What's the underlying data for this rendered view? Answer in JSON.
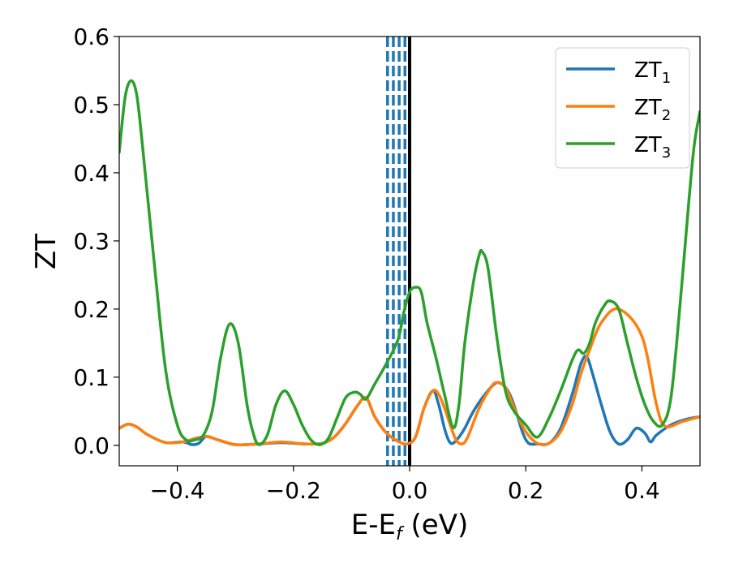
{
  "chart_data": {
    "type": "line",
    "xlabel": {
      "main": "E-E",
      "sub": "f",
      "suffix": " (eV)"
    },
    "ylabel": "ZT",
    "xlim": [
      -0.5,
      0.5
    ],
    "ylim": [
      -0.03,
      0.6
    ],
    "xticks": [
      -0.4,
      -0.2,
      0.0,
      0.2,
      0.4
    ],
    "xtick_labels": [
      "−0.4",
      "−0.2",
      "0.0",
      "0.2",
      "0.4"
    ],
    "yticks": [
      0.0,
      0.1,
      0.2,
      0.3,
      0.4,
      0.5,
      0.6
    ],
    "ytick_labels": [
      "0.0",
      "0.1",
      "0.2",
      "0.3",
      "0.4",
      "0.5",
      "0.6"
    ],
    "grid": false,
    "legend_placement": "top-right",
    "vertical_lines": [
      {
        "x": -0.038,
        "color": "#1f77b4",
        "style": "dashed"
      },
      {
        "x": -0.028,
        "color": "#1f77b4",
        "style": "dashed"
      },
      {
        "x": -0.018,
        "color": "#1f77b4",
        "style": "dashed"
      },
      {
        "x": -0.008,
        "color": "#1f77b4",
        "style": "dashed"
      },
      {
        "x": 0.0,
        "color": "#000000",
        "style": "solid"
      }
    ],
    "series": [
      {
        "name": "ZT",
        "sub": "1",
        "color": "#1f77b4",
        "x": [
          -0.5,
          -0.485,
          -0.47,
          -0.45,
          -0.42,
          -0.39,
          -0.375,
          -0.363,
          -0.35,
          -0.33,
          -0.3,
          -0.26,
          -0.22,
          -0.18,
          -0.15,
          -0.13,
          -0.11,
          -0.09,
          -0.075,
          -0.06,
          -0.04,
          -0.02,
          -0.005,
          0.01,
          0.025,
          0.04,
          0.05,
          0.06,
          0.068,
          0.075,
          0.085,
          0.095,
          0.11,
          0.13,
          0.15,
          0.165,
          0.175,
          0.185,
          0.195,
          0.205,
          0.22,
          0.24,
          0.26,
          0.28,
          0.295,
          0.305,
          0.315,
          0.33,
          0.345,
          0.36,
          0.375,
          0.39,
          0.405,
          0.415,
          0.425,
          0.45,
          0.475,
          0.5
        ],
        "y": [
          0.025,
          0.031,
          0.027,
          0.015,
          0.004,
          0.005,
          0.001,
          0.003,
          0.013,
          0.008,
          0.001,
          0.002,
          0.004,
          0.002,
          0.003,
          0.012,
          0.032,
          0.058,
          0.07,
          0.042,
          0.018,
          0.006,
          0.002,
          0.012,
          0.055,
          0.08,
          0.06,
          0.025,
          0.006,
          0.003,
          0.012,
          0.025,
          0.05,
          0.075,
          0.092,
          0.085,
          0.07,
          0.045,
          0.018,
          0.003,
          0.002,
          0.003,
          0.025,
          0.075,
          0.12,
          0.13,
          0.105,
          0.06,
          0.02,
          0.002,
          0.008,
          0.025,
          0.018,
          0.005,
          0.015,
          0.03,
          0.038,
          0.042
        ]
      },
      {
        "name": "ZT",
        "sub": "2",
        "color": "#ff7f0e",
        "x": [
          -0.5,
          -0.485,
          -0.47,
          -0.45,
          -0.42,
          -0.39,
          -0.37,
          -0.35,
          -0.33,
          -0.3,
          -0.26,
          -0.22,
          -0.18,
          -0.15,
          -0.13,
          -0.11,
          -0.09,
          -0.075,
          -0.06,
          -0.04,
          -0.02,
          -0.005,
          0.01,
          0.025,
          0.04,
          0.05,
          0.06,
          0.07,
          0.08,
          0.09,
          0.1,
          0.12,
          0.14,
          0.15,
          0.165,
          0.18,
          0.2,
          0.22,
          0.24,
          0.26,
          0.28,
          0.295,
          0.31,
          0.33,
          0.36,
          0.4,
          0.425,
          0.44,
          0.47,
          0.5
        ],
        "y": [
          0.025,
          0.031,
          0.027,
          0.015,
          0.004,
          0.005,
          0.01,
          0.013,
          0.008,
          0.001,
          0.002,
          0.005,
          0.002,
          0.003,
          0.012,
          0.032,
          0.058,
          0.07,
          0.042,
          0.018,
          0.006,
          0.002,
          0.012,
          0.055,
          0.08,
          0.075,
          0.055,
          0.03,
          0.008,
          0.002,
          0.012,
          0.055,
          0.085,
          0.092,
          0.085,
          0.055,
          0.02,
          0.003,
          0.003,
          0.02,
          0.06,
          0.105,
          0.14,
          0.18,
          0.2,
          0.16,
          0.06,
          0.028,
          0.035,
          0.042
        ]
      },
      {
        "name": "ZT",
        "sub": "3",
        "color": "#2ca02c",
        "x": [
          -0.5,
          -0.49,
          -0.48,
          -0.47,
          -0.46,
          -0.44,
          -0.42,
          -0.4,
          -0.385,
          -0.37,
          -0.355,
          -0.34,
          -0.325,
          -0.31,
          -0.295,
          -0.28,
          -0.27,
          -0.26,
          -0.245,
          -0.23,
          -0.215,
          -0.2,
          -0.185,
          -0.17,
          -0.155,
          -0.14,
          -0.125,
          -0.11,
          -0.095,
          -0.085,
          -0.075,
          -0.06,
          -0.04,
          -0.02,
          -0.01,
          0.0,
          0.01,
          0.02,
          0.03,
          0.045,
          0.06,
          0.075,
          0.085,
          0.095,
          0.11,
          0.12,
          0.125,
          0.135,
          0.15,
          0.165,
          0.18,
          0.2,
          0.22,
          0.24,
          0.26,
          0.28,
          0.29,
          0.3,
          0.31,
          0.32,
          0.335,
          0.345,
          0.36,
          0.375,
          0.39,
          0.405,
          0.42,
          0.435,
          0.45,
          0.465,
          0.48,
          0.49,
          0.5
        ],
        "y": [
          0.43,
          0.51,
          0.535,
          0.515,
          0.44,
          0.27,
          0.11,
          0.03,
          0.008,
          0.008,
          0.015,
          0.05,
          0.13,
          0.178,
          0.15,
          0.06,
          0.02,
          0.001,
          0.015,
          0.06,
          0.08,
          0.06,
          0.03,
          0.008,
          0.001,
          0.01,
          0.04,
          0.07,
          0.078,
          0.075,
          0.068,
          0.09,
          0.12,
          0.155,
          0.195,
          0.225,
          0.232,
          0.225,
          0.18,
          0.13,
          0.075,
          0.026,
          0.06,
          0.15,
          0.24,
          0.28,
          0.284,
          0.26,
          0.16,
          0.08,
          0.05,
          0.03,
          0.012,
          0.04,
          0.08,
          0.125,
          0.14,
          0.135,
          0.15,
          0.18,
          0.205,
          0.212,
          0.2,
          0.15,
          0.1,
          0.06,
          0.035,
          0.03,
          0.07,
          0.2,
          0.35,
          0.44,
          0.49
        ]
      }
    ]
  }
}
